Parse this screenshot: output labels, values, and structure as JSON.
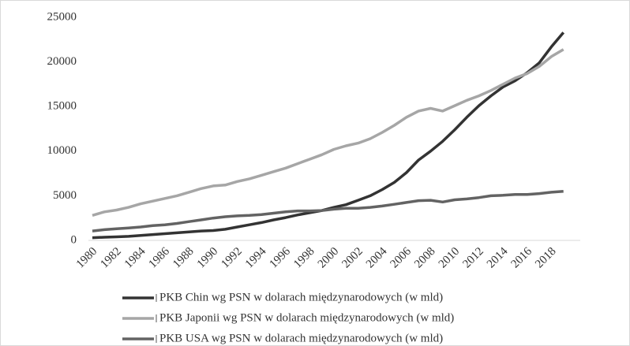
{
  "chart_data": {
    "type": "line",
    "categories": [
      "1980",
      null,
      "1982",
      null,
      "1984",
      null,
      "1986",
      null,
      "1988",
      null,
      "1990",
      null,
      "1992",
      null,
      "1994",
      null,
      "1996",
      null,
      "1998",
      null,
      "2000",
      null,
      "2002",
      null,
      "2004",
      null,
      "2006",
      null,
      "2008",
      null,
      "2010",
      null,
      "2012",
      null,
      "2014",
      null,
      "2016",
      null,
      "2018",
      null
    ],
    "series": [
      {
        "name": "PKB Chin wg PSN w dolarach międzynarodowych (w mld)",
        "color": "#333333",
        "values": [
          300,
          350,
          400,
          450,
          550,
          650,
          750,
          850,
          950,
          1050,
          1100,
          1250,
          1500,
          1750,
          2000,
          2300,
          2550,
          2850,
          3100,
          3350,
          3700,
          4000,
          4500,
          5000,
          5700,
          6500,
          7600,
          9000,
          10000,
          11100,
          12400,
          13800,
          15100,
          16200,
          17200,
          17900,
          18800,
          19900,
          21700,
          23300
        ]
      },
      {
        "name": "PKB Japonii wg PSN w dolarach międzynarodowych (w mld)",
        "color": "#a6a6a6",
        "values": [
          2800,
          3200,
          3400,
          3700,
          4100,
          4400,
          4700,
          5000,
          5400,
          5800,
          6100,
          6200,
          6600,
          6900,
          7300,
          7700,
          8100,
          8600,
          9100,
          9600,
          10200,
          10600,
          10900,
          11400,
          12100,
          12900,
          13800,
          14500,
          14800,
          14500,
          15100,
          15700,
          16200,
          16800,
          17500,
          18200,
          18700,
          19500,
          20600,
          21400
        ]
      },
      {
        "name": "PKB USA wg PSN w dolarach międzynarodowych (w mld)",
        "color": "#636363",
        "values": [
          1050,
          1200,
          1300,
          1400,
          1500,
          1650,
          1750,
          1900,
          2100,
          2300,
          2500,
          2650,
          2750,
          2800,
          2900,
          3050,
          3200,
          3300,
          3300,
          3350,
          3500,
          3600,
          3600,
          3700,
          3850,
          4050,
          4250,
          4450,
          4500,
          4300,
          4550,
          4650,
          4800,
          5000,
          5050,
          5150,
          5150,
          5250,
          5400,
          5500
        ]
      }
    ],
    "ylim": [
      0,
      25000
    ],
    "yticks": [
      0,
      5000,
      10000,
      15000,
      20000,
      25000
    ],
    "grid": false
  }
}
